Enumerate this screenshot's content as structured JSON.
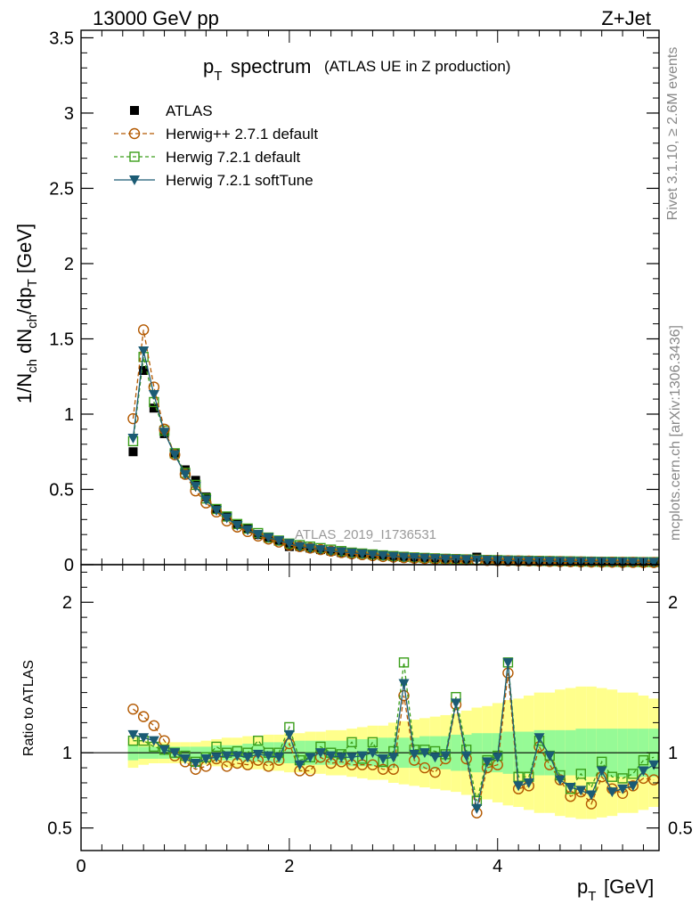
{
  "header": {
    "energy": "13000 GeV pp",
    "process": "Z+Jet"
  },
  "side_labels": {
    "rivet": "Rivet 3.1.10, ≥ 2.6M events",
    "mcplots": "mcplots.cern.ch [arXiv:1306.3436]"
  },
  "chart_data": [
    {
      "type": "line",
      "panel": "main",
      "title_main": "p",
      "title_sub": "T",
      "title_word": "spectrum",
      "title_paren": "(ATLAS UE in Z production)",
      "watermark": "ATLAS_2019_I1736531",
      "ylabel": "1/N_ch dN_ch/dp_T [GeV]",
      "xlim": [
        0,
        5.55
      ],
      "ylim": [
        0,
        3.55
      ],
      "yticks": [
        0,
        0.5,
        1,
        1.5,
        2,
        2.5,
        3,
        3.5
      ],
      "ytick_labels": [
        "0",
        "0.5",
        "1",
        "1.5",
        "2",
        "2.5",
        "3",
        "3.5"
      ],
      "legend_position": "top-left",
      "x": [
        0.5,
        0.6,
        0.7,
        0.8,
        0.9,
        1.0,
        1.1,
        1.2,
        1.3,
        1.4,
        1.5,
        1.6,
        1.7,
        1.8,
        1.9,
        2.0,
        2.1,
        2.2,
        2.3,
        2.4,
        2.5,
        2.6,
        2.7,
        2.8,
        2.9,
        3.0,
        3.1,
        3.2,
        3.3,
        3.4,
        3.5,
        3.6,
        3.7,
        3.8,
        3.9,
        4.0,
        4.1,
        4.2,
        4.3,
        4.4,
        4.5,
        4.6,
        4.7,
        4.8,
        4.9,
        5.0,
        5.1,
        5.2,
        5.3,
        5.4,
        5.5
      ],
      "series": [
        {
          "name": "ATLAS",
          "color": "#000000",
          "marker": "square-filled",
          "values": [
            0.75,
            1.29,
            1.04,
            0.87,
            0.74,
            0.63,
            0.56,
            0.45,
            0.37,
            0.32,
            0.27,
            0.24,
            0.2,
            0.18,
            0.16,
            0.12,
            0.12,
            0.11,
            0.1,
            0.09,
            0.08,
            0.075,
            0.07,
            0.065,
            0.06,
            0.055,
            0.05,
            0.048,
            0.045,
            0.042,
            0.04,
            0.038,
            0.036,
            0.05,
            0.032,
            0.03,
            0.028,
            0.027,
            0.026,
            0.025,
            0.024,
            0.023,
            0.022,
            0.021,
            0.02,
            0.02,
            0.019,
            0.018,
            0.018,
            0.017,
            0.017
          ]
        },
        {
          "name": "Herwig++ 2.7.1 default",
          "color": "#b35900",
          "marker": "circle-open",
          "dash": "5,3",
          "values": [
            0.97,
            1.56,
            1.18,
            0.9,
            0.73,
            0.6,
            0.49,
            0.41,
            0.35,
            0.29,
            0.25,
            0.22,
            0.19,
            0.17,
            0.15,
            0.13,
            0.12,
            0.11,
            0.1,
            0.09,
            0.08,
            0.072,
            0.066,
            0.06,
            0.054,
            0.05,
            0.046,
            0.043,
            0.04,
            0.037,
            0.035,
            0.033,
            0.031,
            0.03,
            0.028,
            0.027,
            0.026,
            0.025,
            0.024,
            0.022,
            0.021,
            0.02,
            0.019,
            0.018,
            0.017,
            0.016,
            0.016,
            0.015,
            0.015,
            0.014,
            0.014
          ]
        },
        {
          "name": "Herwig 7.2.1 default",
          "color": "#3a9e1a",
          "marker": "square-open",
          "dash": "4,3",
          "values": [
            0.82,
            1.38,
            1.08,
            0.89,
            0.74,
            0.61,
            0.53,
            0.44,
            0.37,
            0.32,
            0.27,
            0.24,
            0.21,
            0.18,
            0.16,
            0.14,
            0.13,
            0.12,
            0.11,
            0.1,
            0.09,
            0.08,
            0.074,
            0.068,
            0.062,
            0.057,
            0.052,
            0.048,
            0.045,
            0.042,
            0.039,
            0.037,
            0.035,
            0.033,
            0.031,
            0.03,
            0.028,
            0.027,
            0.026,
            0.025,
            0.024,
            0.023,
            0.022,
            0.021,
            0.02,
            0.019,
            0.019,
            0.018,
            0.018,
            0.017,
            0.017
          ]
        },
        {
          "name": "Herwig 7.2.1 softTune",
          "color": "#1b5b74",
          "marker": "triangle-down",
          "dash": "",
          "values": [
            0.84,
            1.42,
            1.13,
            0.88,
            0.73,
            0.6,
            0.52,
            0.43,
            0.36,
            0.31,
            0.26,
            0.23,
            0.2,
            0.18,
            0.16,
            0.14,
            0.12,
            0.11,
            0.1,
            0.09,
            0.085,
            0.078,
            0.072,
            0.066,
            0.06,
            0.055,
            0.05,
            0.047,
            0.044,
            0.041,
            0.038,
            0.036,
            0.034,
            0.032,
            0.03,
            0.029,
            0.027,
            0.026,
            0.025,
            0.024,
            0.023,
            0.022,
            0.021,
            0.02,
            0.02,
            0.019,
            0.018,
            0.018,
            0.017,
            0.017,
            0.016
          ]
        }
      ]
    },
    {
      "type": "line",
      "panel": "ratio",
      "ylabel": "Ratio to ATLAS",
      "xlabel_main": "p",
      "xlabel_sub": "T",
      "xlabel_unit": "[GeV]",
      "xlim": [
        0,
        5.55
      ],
      "ylim": [
        0.35,
        2.25
      ],
      "xticks": [
        0,
        2,
        4
      ],
      "xtick_labels": [
        "0",
        "2",
        "4"
      ],
      "yticks": [
        0.5,
        1,
        2
      ],
      "ytick_labels": [
        "0.5",
        "1",
        "2"
      ],
      "x": [
        0.5,
        0.6,
        0.7,
        0.8,
        0.9,
        1.0,
        1.1,
        1.2,
        1.3,
        1.4,
        1.5,
        1.6,
        1.7,
        1.8,
        1.9,
        2.0,
        2.1,
        2.2,
        2.3,
        2.4,
        2.5,
        2.6,
        2.7,
        2.8,
        2.9,
        3.0,
        3.1,
        3.2,
        3.3,
        3.4,
        3.5,
        3.6,
        3.7,
        3.8,
        3.9,
        4.0,
        4.1,
        4.2,
        4.3,
        4.4,
        4.5,
        4.6,
        4.7,
        4.8,
        4.9,
        5.0,
        5.1,
        5.2,
        5.3,
        5.4,
        5.5
      ],
      "band_green_halfwidth": [
        0.05,
        0.04,
        0.04,
        0.04,
        0.04,
        0.04,
        0.04,
        0.04,
        0.05,
        0.05,
        0.05,
        0.06,
        0.06,
        0.07,
        0.07,
        0.07,
        0.08,
        0.08,
        0.08,
        0.08,
        0.08,
        0.09,
        0.09,
        0.09,
        0.1,
        0.1,
        0.1,
        0.1,
        0.11,
        0.11,
        0.11,
        0.12,
        0.12,
        0.13,
        0.13,
        0.13,
        0.14,
        0.14,
        0.14,
        0.15,
        0.15,
        0.15,
        0.15,
        0.16,
        0.16,
        0.16,
        0.16,
        0.16,
        0.16,
        0.16,
        0.16
      ],
      "band_yellow_halfwidth": [
        0.1,
        0.08,
        0.07,
        0.07,
        0.07,
        0.07,
        0.07,
        0.08,
        0.09,
        0.1,
        0.1,
        0.11,
        0.11,
        0.12,
        0.12,
        0.13,
        0.13,
        0.14,
        0.14,
        0.15,
        0.15,
        0.16,
        0.17,
        0.18,
        0.18,
        0.2,
        0.21,
        0.22,
        0.23,
        0.24,
        0.25,
        0.26,
        0.28,
        0.3,
        0.31,
        0.33,
        0.35,
        0.36,
        0.38,
        0.4,
        0.4,
        0.42,
        0.43,
        0.44,
        0.44,
        0.43,
        0.42,
        0.4,
        0.4,
        0.38,
        0.36
      ],
      "series": [
        {
          "name": "Herwig++ 2.7.1 default",
          "color": "#b35900",
          "marker": "circle-open",
          "dash": "5,3",
          "values": [
            1.29,
            1.24,
            1.18,
            1.08,
            0.98,
            0.94,
            0.89,
            0.91,
            0.96,
            0.91,
            0.93,
            0.92,
            0.95,
            0.91,
            0.95,
            1.06,
            0.88,
            0.88,
            0.97,
            0.93,
            0.94,
            0.92,
            0.92,
            0.92,
            0.89,
            0.89,
            1.38,
            0.95,
            0.9,
            0.87,
            0.96,
            1.32,
            0.96,
            0.6,
            0.9,
            0.92,
            1.53,
            0.76,
            0.78,
            1.04,
            0.92,
            0.82,
            0.71,
            0.74,
            0.66,
            0.84,
            0.76,
            0.73,
            0.78,
            0.83,
            0.82
          ]
        },
        {
          "name": "Herwig 7.2.1 default",
          "color": "#3a9e1a",
          "marker": "square-open",
          "dash": "4,3",
          "values": [
            1.08,
            1.08,
            1.04,
            1.02,
            1.0,
            0.98,
            0.94,
            0.97,
            1.04,
            1.0,
            1.01,
            1.0,
            1.08,
            1.0,
            1.0,
            1.17,
            0.95,
            0.97,
            1.04,
            1.0,
            0.99,
            1.07,
            0.96,
            1.07,
            0.94,
            1.01,
            1.6,
            1.02,
            1.02,
            1.01,
            0.99,
            1.37,
            1.02,
            0.68,
            0.95,
            0.98,
            1.6,
            0.84,
            0.84,
            1.08,
            0.98,
            0.85,
            0.76,
            0.86,
            0.77,
            0.94,
            0.84,
            0.83,
            0.86,
            0.95,
            0.97
          ]
        },
        {
          "name": "Herwig 7.2.1 softTune",
          "color": "#1b5b74",
          "marker": "triangle-down",
          "dash": "",
          "values": [
            1.12,
            1.1,
            1.08,
            1.02,
            1.0,
            0.96,
            0.93,
            0.96,
            0.97,
            0.98,
            0.98,
            0.97,
            0.99,
            0.98,
            0.97,
            1.12,
            0.92,
            0.97,
            1.0,
            0.98,
            0.97,
            0.97,
            0.98,
            1.0,
            0.96,
            0.97,
            1.46,
            0.99,
            1.0,
            0.97,
            0.98,
            1.33,
            0.98,
            0.63,
            0.94,
            0.97,
            1.6,
            0.78,
            0.8,
            1.1,
            0.98,
            0.82,
            0.77,
            0.75,
            0.72,
            0.88,
            0.74,
            0.76,
            0.78,
            0.88,
            0.92
          ]
        }
      ]
    }
  ]
}
